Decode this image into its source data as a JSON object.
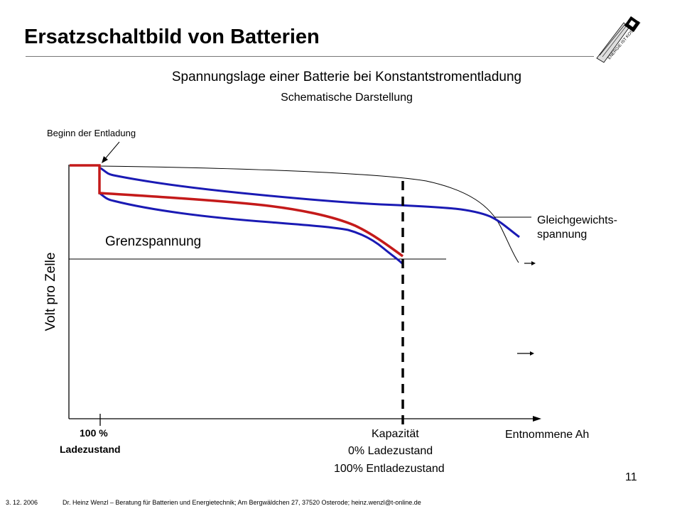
{
  "slide": {
    "title": "Ersatzschaltbild von Batterien",
    "page_number": "11"
  },
  "diagram": {
    "subtitle": "Spannungslage einer Batterie bei Konstantstromentladung",
    "subtitle2": "Schematische Darstellung",
    "label_beginn": "Beginn der Entladung",
    "label_grenzspannung": "Grenzspannung",
    "label_gleichgewicht_line1": "Gleichgewichts-",
    "label_gleichgewicht_line2": "spannung",
    "label_y_axis": "Volt pro Zelle",
    "label_100": "100 %",
    "label_ladezustand": "Ladezustand",
    "label_kapazitaet": "Kapazität",
    "label_0_ladezustand": "0% Ladezustand",
    "label_100_entladezustand": "100% Entladezustand",
    "label_x_axis": "Entnommene Ah",
    "colors": {
      "blue": "#1a1ab4",
      "red": "#c41a1a",
      "black": "#000000"
    }
  },
  "footer": {
    "date": "3. 12. 2006",
    "text": "Dr. Heinz Wenzl – Beratung für Batterien und Energietechnik; Am Bergwäldchen 27, 37520 Osterode; heinz.wenzl@t-online.de"
  },
  "logo": {
    "icon": "energie-logo-icon",
    "text": "ENERGIE IST KOSTBAR"
  }
}
